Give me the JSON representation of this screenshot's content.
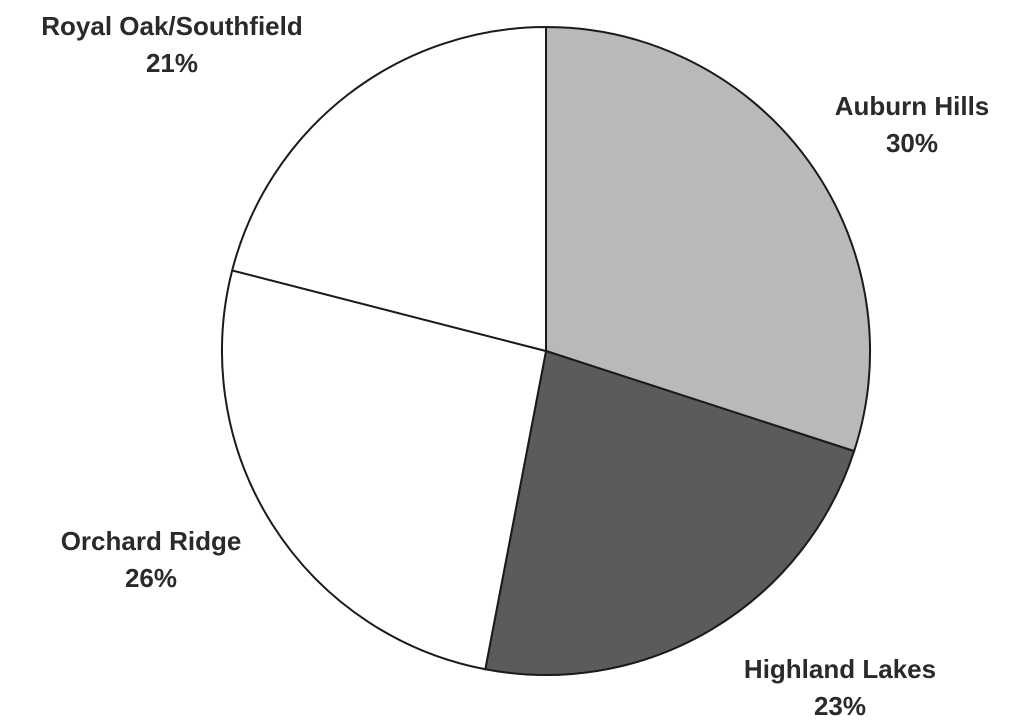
{
  "chart_data": {
    "type": "pie",
    "title": "",
    "start": "12 o'clock",
    "direction": "clockwise",
    "slices": [
      {
        "label": "Auburn Hills",
        "value": 30,
        "value_label": "30%",
        "color": "#b9b9b9"
      },
      {
        "label": "Highland Lakes",
        "value": 23,
        "value_label": "23%",
        "color": "#5b5b5b"
      },
      {
        "label": "Orchard Ridge",
        "value": 26,
        "value_label": "26%",
        "color": "#ffffff"
      },
      {
        "label": "Royal Oak/Southfield",
        "value": 21,
        "value_label": "21%",
        "color": "#ffffff"
      }
    ]
  }
}
